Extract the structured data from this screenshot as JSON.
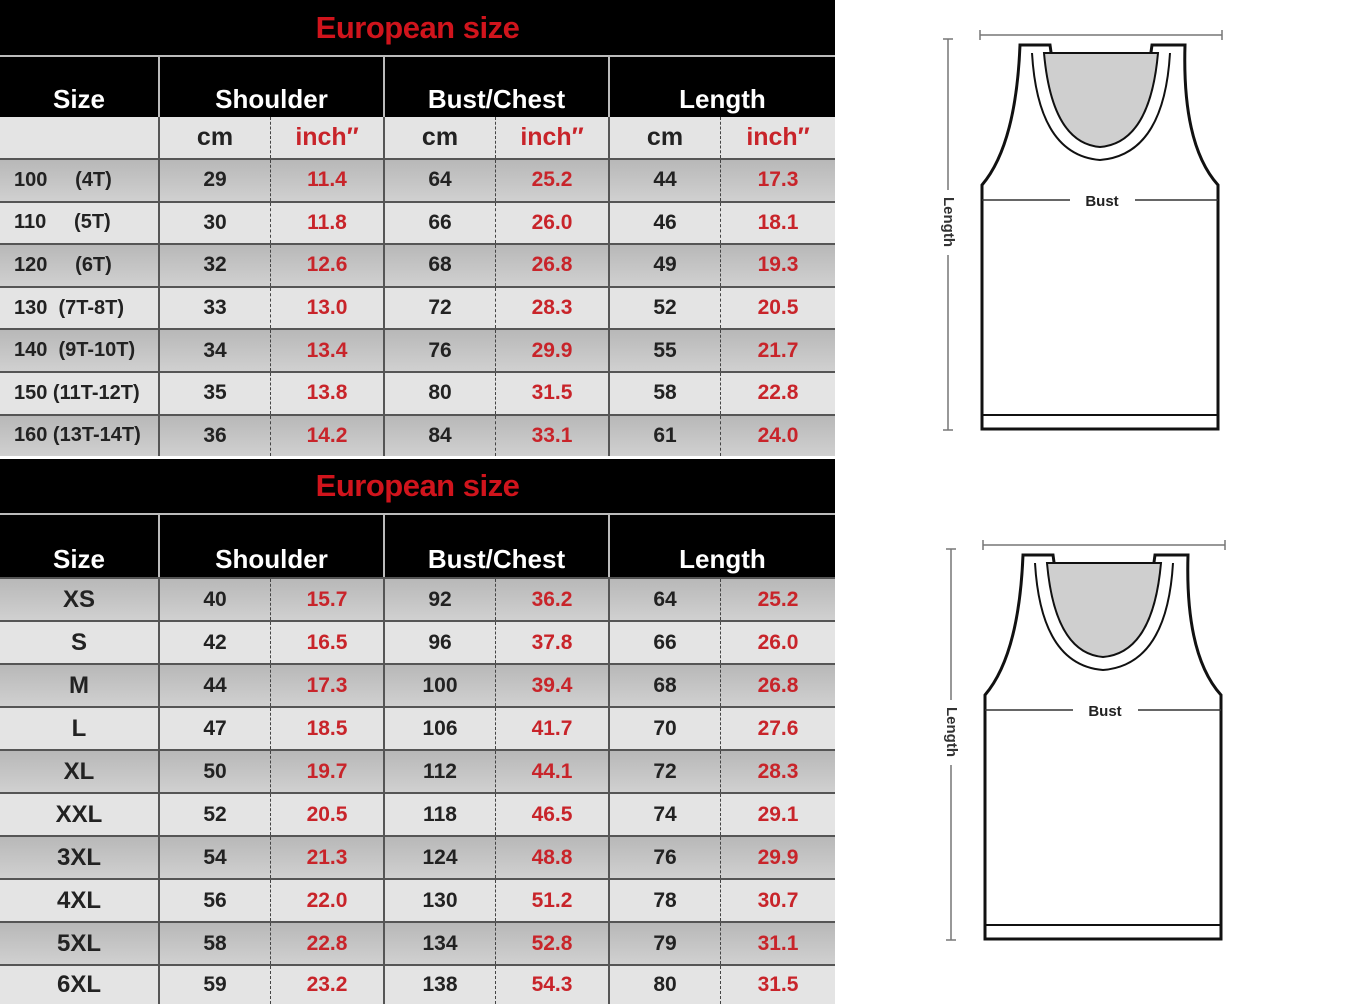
{
  "kids_table": {
    "title": "European size",
    "headers": [
      "Size",
      "Shoulder",
      "Bust/Chest",
      "Length"
    ],
    "units": [
      "",
      "cm",
      "inch″",
      "cm",
      "inch″",
      "cm",
      "inch″"
    ],
    "rows": [
      [
        "100     (4T)",
        "29",
        "11.4",
        "64",
        "25.2",
        "44",
        "17.3"
      ],
      [
        "110     (5T)",
        "30",
        "11.8",
        "66",
        "26.0",
        "46",
        "18.1"
      ],
      [
        "120     (6T)",
        "32",
        "12.6",
        "68",
        "26.8",
        "49",
        "19.3"
      ],
      [
        "130  (7T-8T)",
        "33",
        "13.0",
        "72",
        "28.3",
        "52",
        "20.5"
      ],
      [
        "140  (9T-10T)",
        "34",
        "13.4",
        "76",
        "29.9",
        "55",
        "21.7"
      ],
      [
        "150 (11T-12T)",
        "35",
        "13.8",
        "80",
        "31.5",
        "58",
        "22.8"
      ],
      [
        "160 (13T-14T)",
        "36",
        "14.2",
        "84",
        "33.1",
        "61",
        "24.0"
      ]
    ]
  },
  "adult_table": {
    "title": "European size",
    "headers": [
      "Size",
      "Shoulder",
      "Bust/Chest",
      "Length"
    ],
    "rows": [
      [
        "XS",
        "40",
        "15.7",
        "92",
        "36.2",
        "64",
        "25.2"
      ],
      [
        "S",
        "42",
        "16.5",
        "96",
        "37.8",
        "66",
        "26.0"
      ],
      [
        "M",
        "44",
        "17.3",
        "100",
        "39.4",
        "68",
        "26.8"
      ],
      [
        "L",
        "47",
        "18.5",
        "106",
        "41.7",
        "70",
        "27.6"
      ],
      [
        "XL",
        "50",
        "19.7",
        "112",
        "44.1",
        "72",
        "28.3"
      ],
      [
        "XXL",
        "52",
        "20.5",
        "118",
        "46.5",
        "74",
        "29.1"
      ],
      [
        "3XL",
        "54",
        "21.3",
        "124",
        "48.8",
        "76",
        "29.9"
      ],
      [
        "4XL",
        "56",
        "22.0",
        "130",
        "51.2",
        "78",
        "30.7"
      ],
      [
        "5XL",
        "58",
        "22.8",
        "134",
        "52.8",
        "79",
        "31.1"
      ],
      [
        "6XL",
        "59",
        "23.2",
        "138",
        "54.3",
        "80",
        "31.5"
      ]
    ]
  },
  "diagrams": [
    {
      "bust_label": "Bust",
      "length_label": "Length"
    },
    {
      "bust_label": "Bust",
      "length_label": "Length"
    }
  ],
  "colors": {
    "title_red": "#d0141c",
    "inch_red": "#c8242a",
    "header_bg": "#000000"
  }
}
